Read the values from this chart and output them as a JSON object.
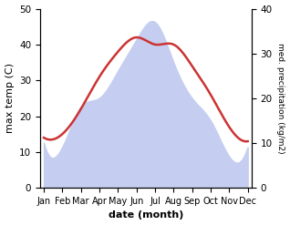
{
  "months": [
    "Jan",
    "Feb",
    "Mar",
    "Apr",
    "May",
    "Jun",
    "Jul",
    "Aug",
    "Sep",
    "Oct",
    "Nov",
    "Dec"
  ],
  "temperature": [
    14,
    15,
    22,
    31,
    38,
    42,
    40,
    40,
    34,
    26,
    17,
    13
  ],
  "precipitation": [
    10,
    9,
    18,
    20,
    26,
    33,
    37,
    28,
    20,
    15,
    7,
    9
  ],
  "temp_color": "#cc3333",
  "precip_color": "#c5cef0",
  "temp_ylim": [
    0,
    50
  ],
  "precip_ylim": [
    0,
    40
  ],
  "xlabel": "date (month)",
  "ylabel_left": "max temp (C)",
  "ylabel_right": "med. precipitation (kg/m2)",
  "bg_color": "#ffffff",
  "temp_linewidth": 1.8,
  "label_fontsize": 8
}
